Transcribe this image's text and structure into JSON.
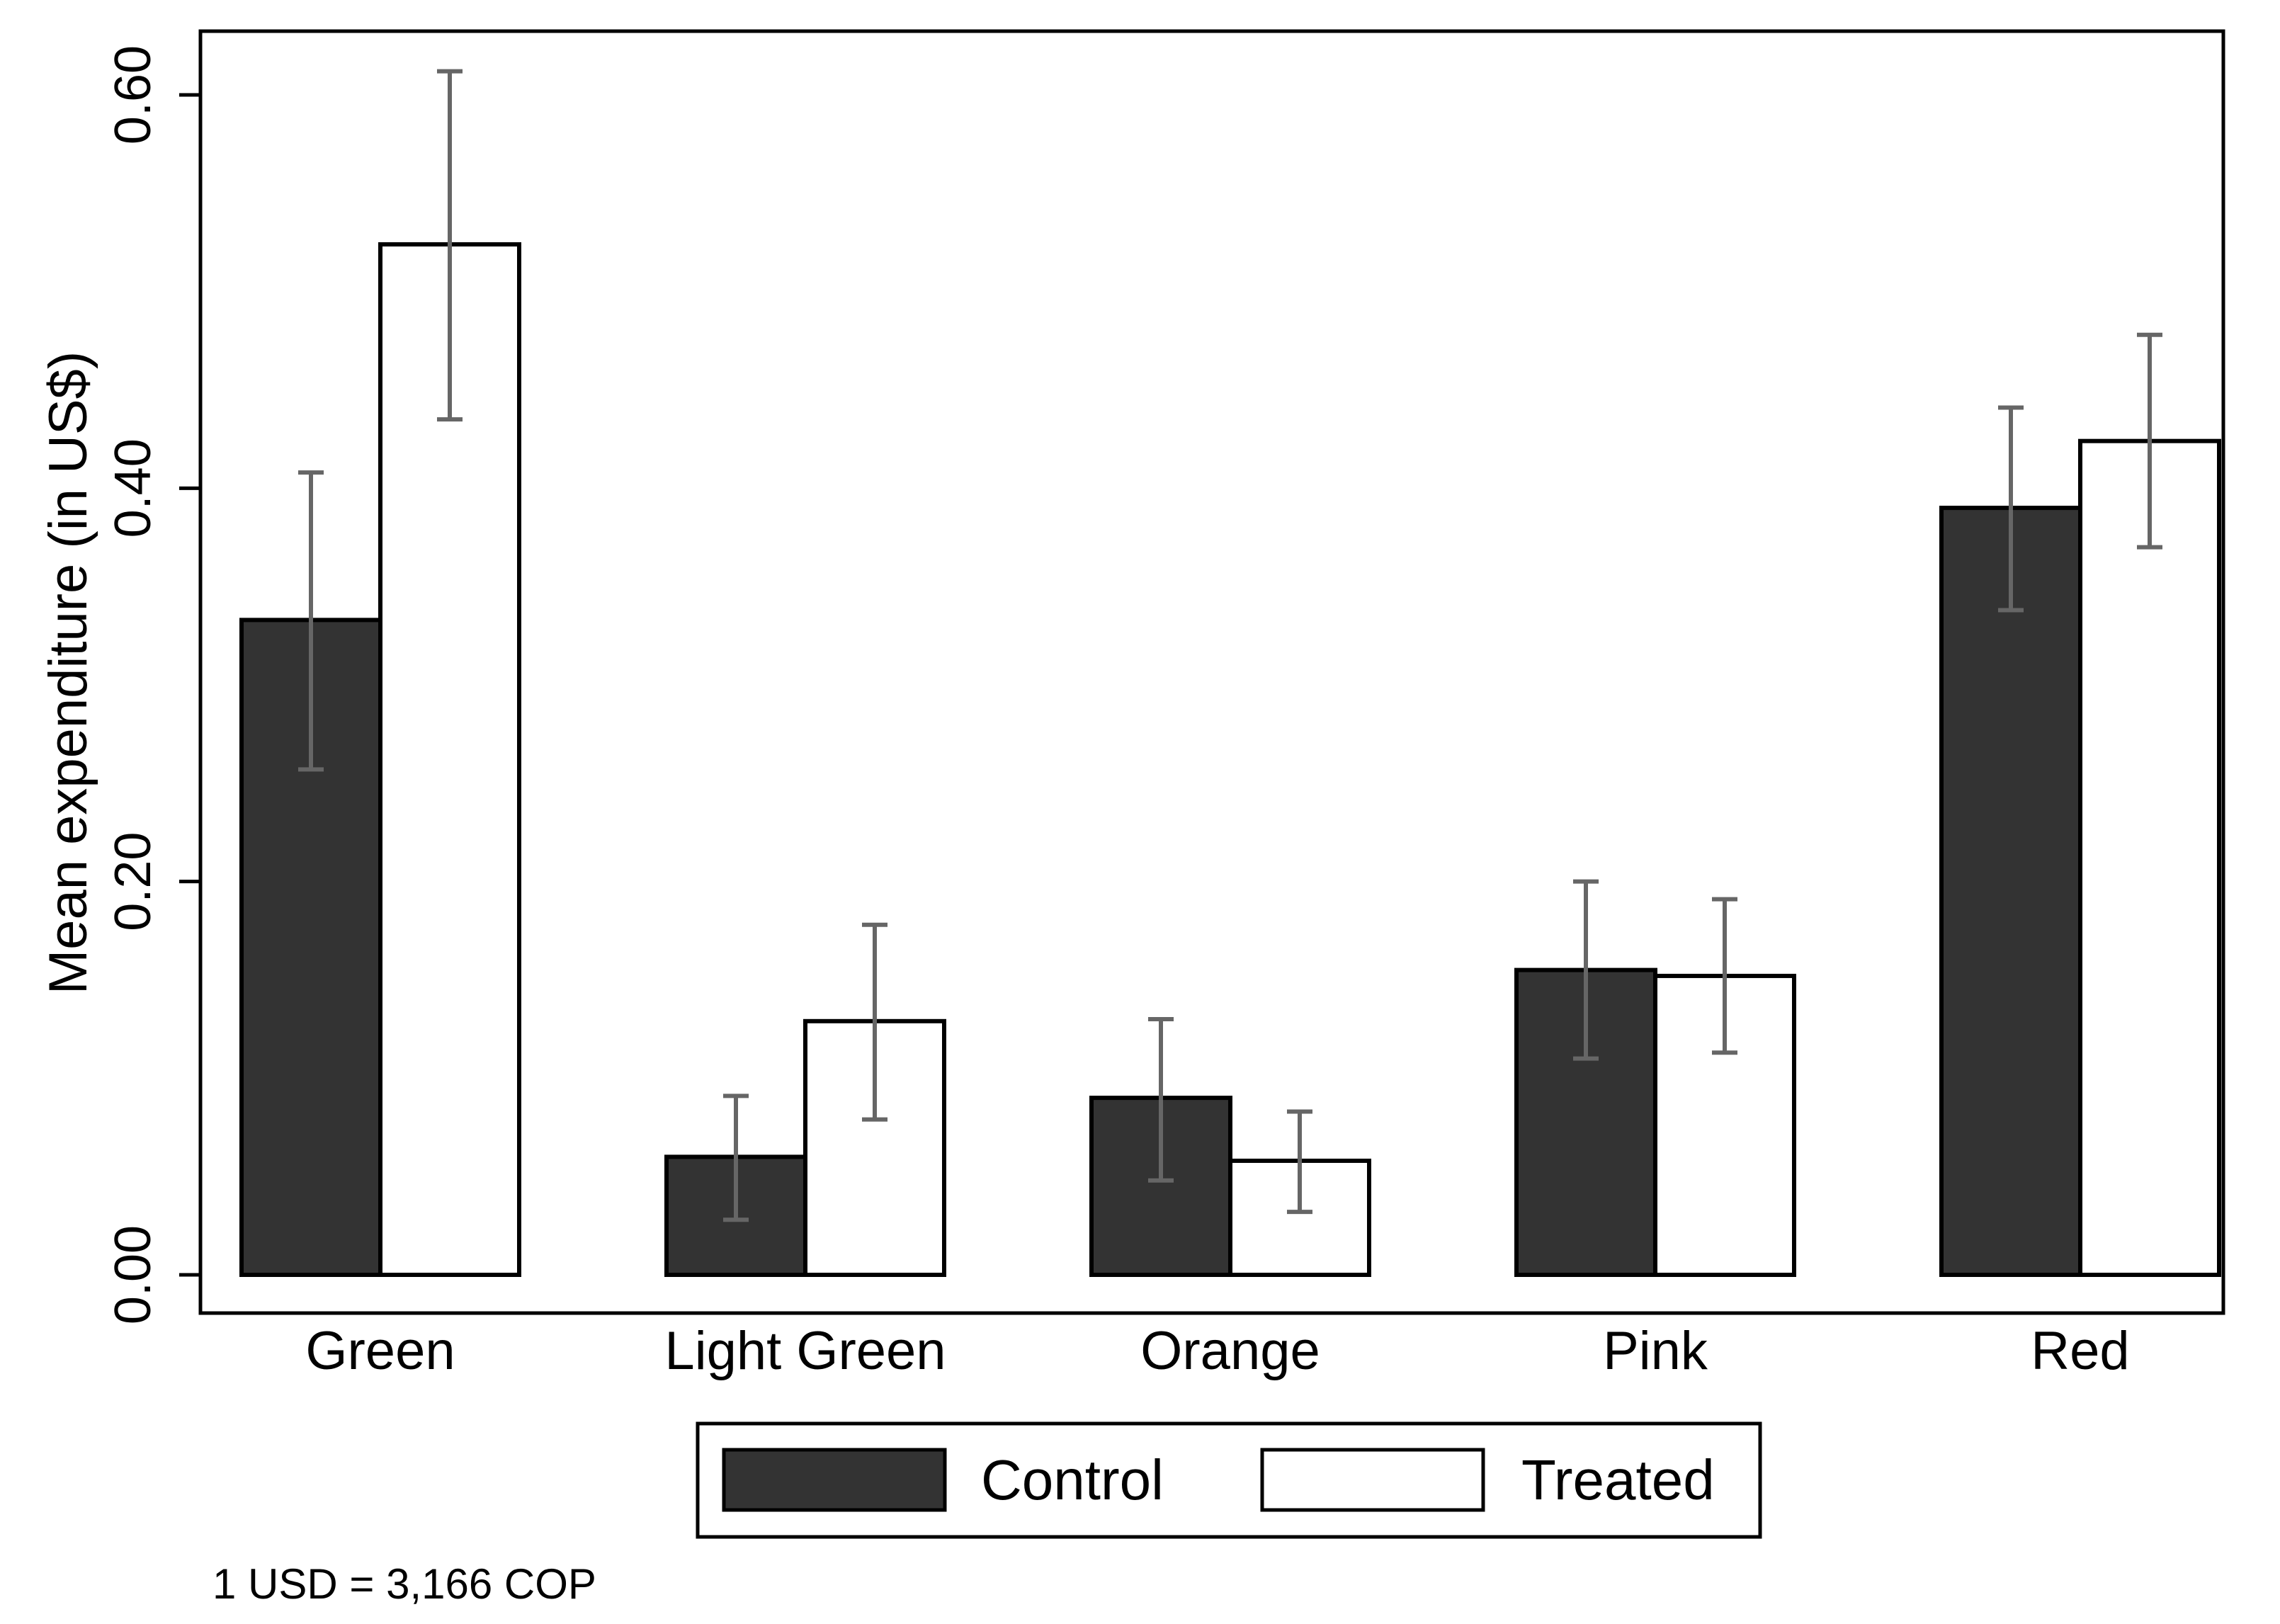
{
  "chart_data": {
    "type": "bar",
    "title": "",
    "xlabel": "",
    "ylabel": "Mean expenditure (in US$)",
    "ylim": [
      0,
      0.62
    ],
    "yticks": [
      0.0,
      0.2,
      0.4,
      0.6
    ],
    "ytick_labels": [
      "0.00",
      "0.20",
      "0.40",
      "0.60"
    ],
    "grid": false,
    "categories": [
      "Green",
      "Light Green",
      "Orange",
      "Pink",
      "Red"
    ],
    "series": [
      {
        "name": "Control",
        "color": "#333333",
        "values": [
          0.333,
          0.06,
          0.09,
          0.155,
          0.39
        ],
        "ci_low": [
          0.257,
          0.028,
          0.048,
          0.11,
          0.338
        ],
        "ci_high": [
          0.408,
          0.091,
          0.13,
          0.2,
          0.441
        ]
      },
      {
        "name": "Treated",
        "color": "#ffffff",
        "values": [
          0.524,
          0.129,
          0.058,
          0.152,
          0.424
        ],
        "ci_low": [
          0.435,
          0.079,
          0.032,
          0.113,
          0.37
        ],
        "ci_high": [
          0.612,
          0.178,
          0.083,
          0.191,
          0.478
        ]
      }
    ],
    "legend": {
      "position": "bottom",
      "entries": [
        "Control",
        "Treated"
      ]
    },
    "errorbar_color": "#666666",
    "note": "1 USD = 3,166 COP"
  }
}
